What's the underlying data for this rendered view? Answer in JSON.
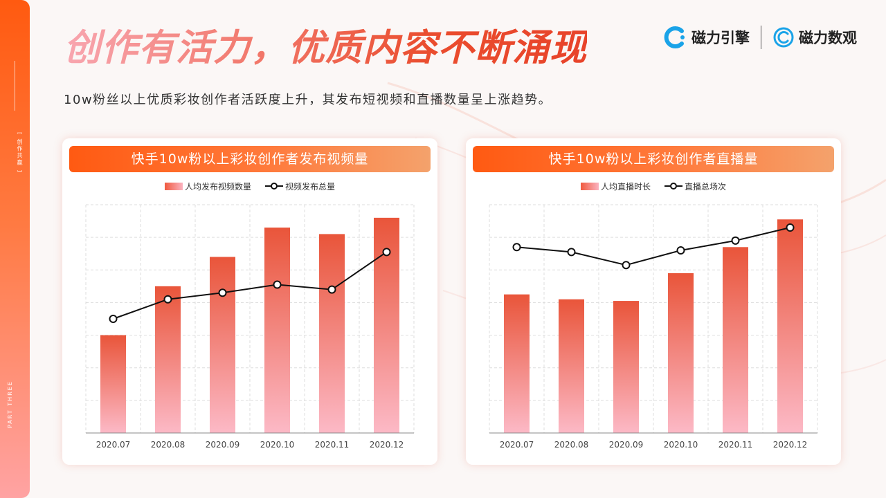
{
  "header": {
    "title": "创作有活力，优质内容不断涌现",
    "subtitle": "10w粉丝以上优质彩妆创作者活跃度上升，其发布短视频和直播数量呈上涨趋势。"
  },
  "sidebar": {
    "section_tag": "[ 创作共赢 ]",
    "part_label": "PART THREE"
  },
  "logos": [
    {
      "name": "磁力引擎",
      "icon": "cilib-engine-logo-icon",
      "color": "#1aa3e8"
    },
    {
      "name": "磁力数观",
      "icon": "cilib-shuguan-logo-icon",
      "color": "#1aa3e8"
    }
  ],
  "colors": {
    "accent": "#ff5a12",
    "bar_top": "#e9553a",
    "bar_bottom": "#fcb9c6",
    "line": "#111111"
  },
  "chart_data": [
    {
      "type": "bar",
      "title": "快手10w粉以上彩妆创作者发布视频量",
      "categories": [
        "2020.07",
        "2020.08",
        "2020.09",
        "2020.10",
        "2020.11",
        "2020.12"
      ],
      "series": [
        {
          "name": "人均发布视频数量",
          "type": "bar",
          "values": [
            30,
            45,
            54,
            63,
            61,
            66
          ]
        },
        {
          "name": "视频发布总量",
          "type": "line",
          "values": [
            35,
            41,
            43,
            45.5,
            44,
            55.5
          ]
        }
      ],
      "ylim": [
        0,
        70
      ],
      "grid": true,
      "legend": "top-center",
      "ytick_labels_shown": false
    },
    {
      "type": "bar",
      "title": "快手10w粉以上彩妆创作者直播量",
      "categories": [
        "2020.07",
        "2020.08",
        "2020.09",
        "2020.10",
        "2020.11",
        "2020.12"
      ],
      "series": [
        {
          "name": "人均直播时长",
          "type": "bar",
          "values": [
            42.5,
            41,
            40.5,
            49,
            57,
            65.5
          ]
        },
        {
          "name": "直播总场次",
          "type": "line",
          "values": [
            57,
            55.5,
            51.5,
            56,
            59,
            63
          ]
        }
      ],
      "ylim": [
        0,
        70
      ],
      "grid": true,
      "legend": "top-center",
      "ytick_labels_shown": false
    }
  ]
}
